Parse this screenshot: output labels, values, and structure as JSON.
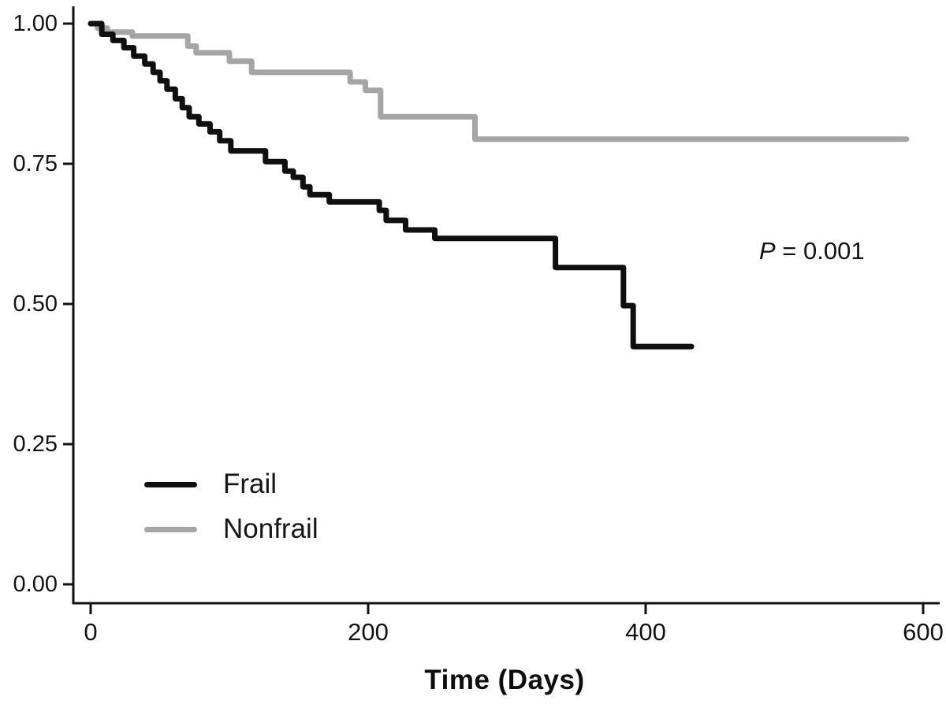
{
  "chart_data": {
    "type": "line",
    "subtype": "kaplan-meier-step",
    "title": "",
    "xlabel": "Time (Days)",
    "ylabel": "",
    "xlim": [
      0,
      600
    ],
    "ylim": [
      0.0,
      1.0
    ],
    "x_ticks": [
      0,
      200,
      400,
      600
    ],
    "y_ticks": [
      0.0,
      0.25,
      0.5,
      0.75,
      1.0
    ],
    "x_tick_labels": [
      "0",
      "200",
      "400",
      "600"
    ],
    "y_tick_labels_top_to_bottom": [
      "1.00",
      "0.75",
      "0.50",
      "0.25",
      "0.00"
    ],
    "grid": false,
    "legend_position": "inside-lower-left",
    "annotation_text": "P = 0.001",
    "axis_color": "#111111",
    "series": [
      {
        "name": "Frail",
        "color": "#0f0f0f",
        "points_time_survival": [
          [
            0,
            1.0
          ],
          [
            8,
            0.981
          ],
          [
            16,
            0.97
          ],
          [
            24,
            0.957
          ],
          [
            31,
            0.942
          ],
          [
            39,
            0.928
          ],
          [
            45,
            0.913
          ],
          [
            50,
            0.898
          ],
          [
            55,
            0.883
          ],
          [
            61,
            0.866
          ],
          [
            66,
            0.85
          ],
          [
            71,
            0.834
          ],
          [
            78,
            0.821
          ],
          [
            86,
            0.807
          ],
          [
            93,
            0.791
          ],
          [
            101,
            0.773
          ],
          [
            126,
            0.754
          ],
          [
            140,
            0.737
          ],
          [
            146,
            0.726
          ],
          [
            153,
            0.709
          ],
          [
            158,
            0.695
          ],
          [
            172,
            0.682
          ],
          [
            208,
            0.667
          ],
          [
            213,
            0.649
          ],
          [
            227,
            0.632
          ],
          [
            248,
            0.617
          ],
          [
            335,
            0.565
          ],
          [
            384,
            0.497
          ],
          [
            391,
            0.424
          ],
          [
            433,
            0.424
          ]
        ]
      },
      {
        "name": "Nonfrail",
        "color": "#a5a5a5",
        "points_time_survival": [
          [
            0,
            1.0
          ],
          [
            5,
            0.992
          ],
          [
            12,
            0.985
          ],
          [
            30,
            0.978
          ],
          [
            70,
            0.96
          ],
          [
            76,
            0.948
          ],
          [
            100,
            0.933
          ],
          [
            116,
            0.913
          ],
          [
            187,
            0.896
          ],
          [
            198,
            0.881
          ],
          [
            209,
            0.834
          ],
          [
            277,
            0.794
          ],
          [
            588,
            0.794
          ]
        ]
      }
    ]
  },
  "annotation": {
    "p_italic": "P",
    "p_rest": " = 0.001"
  },
  "legend": {
    "items": [
      {
        "label": "Frail"
      },
      {
        "label": "Nonfrail"
      }
    ]
  }
}
